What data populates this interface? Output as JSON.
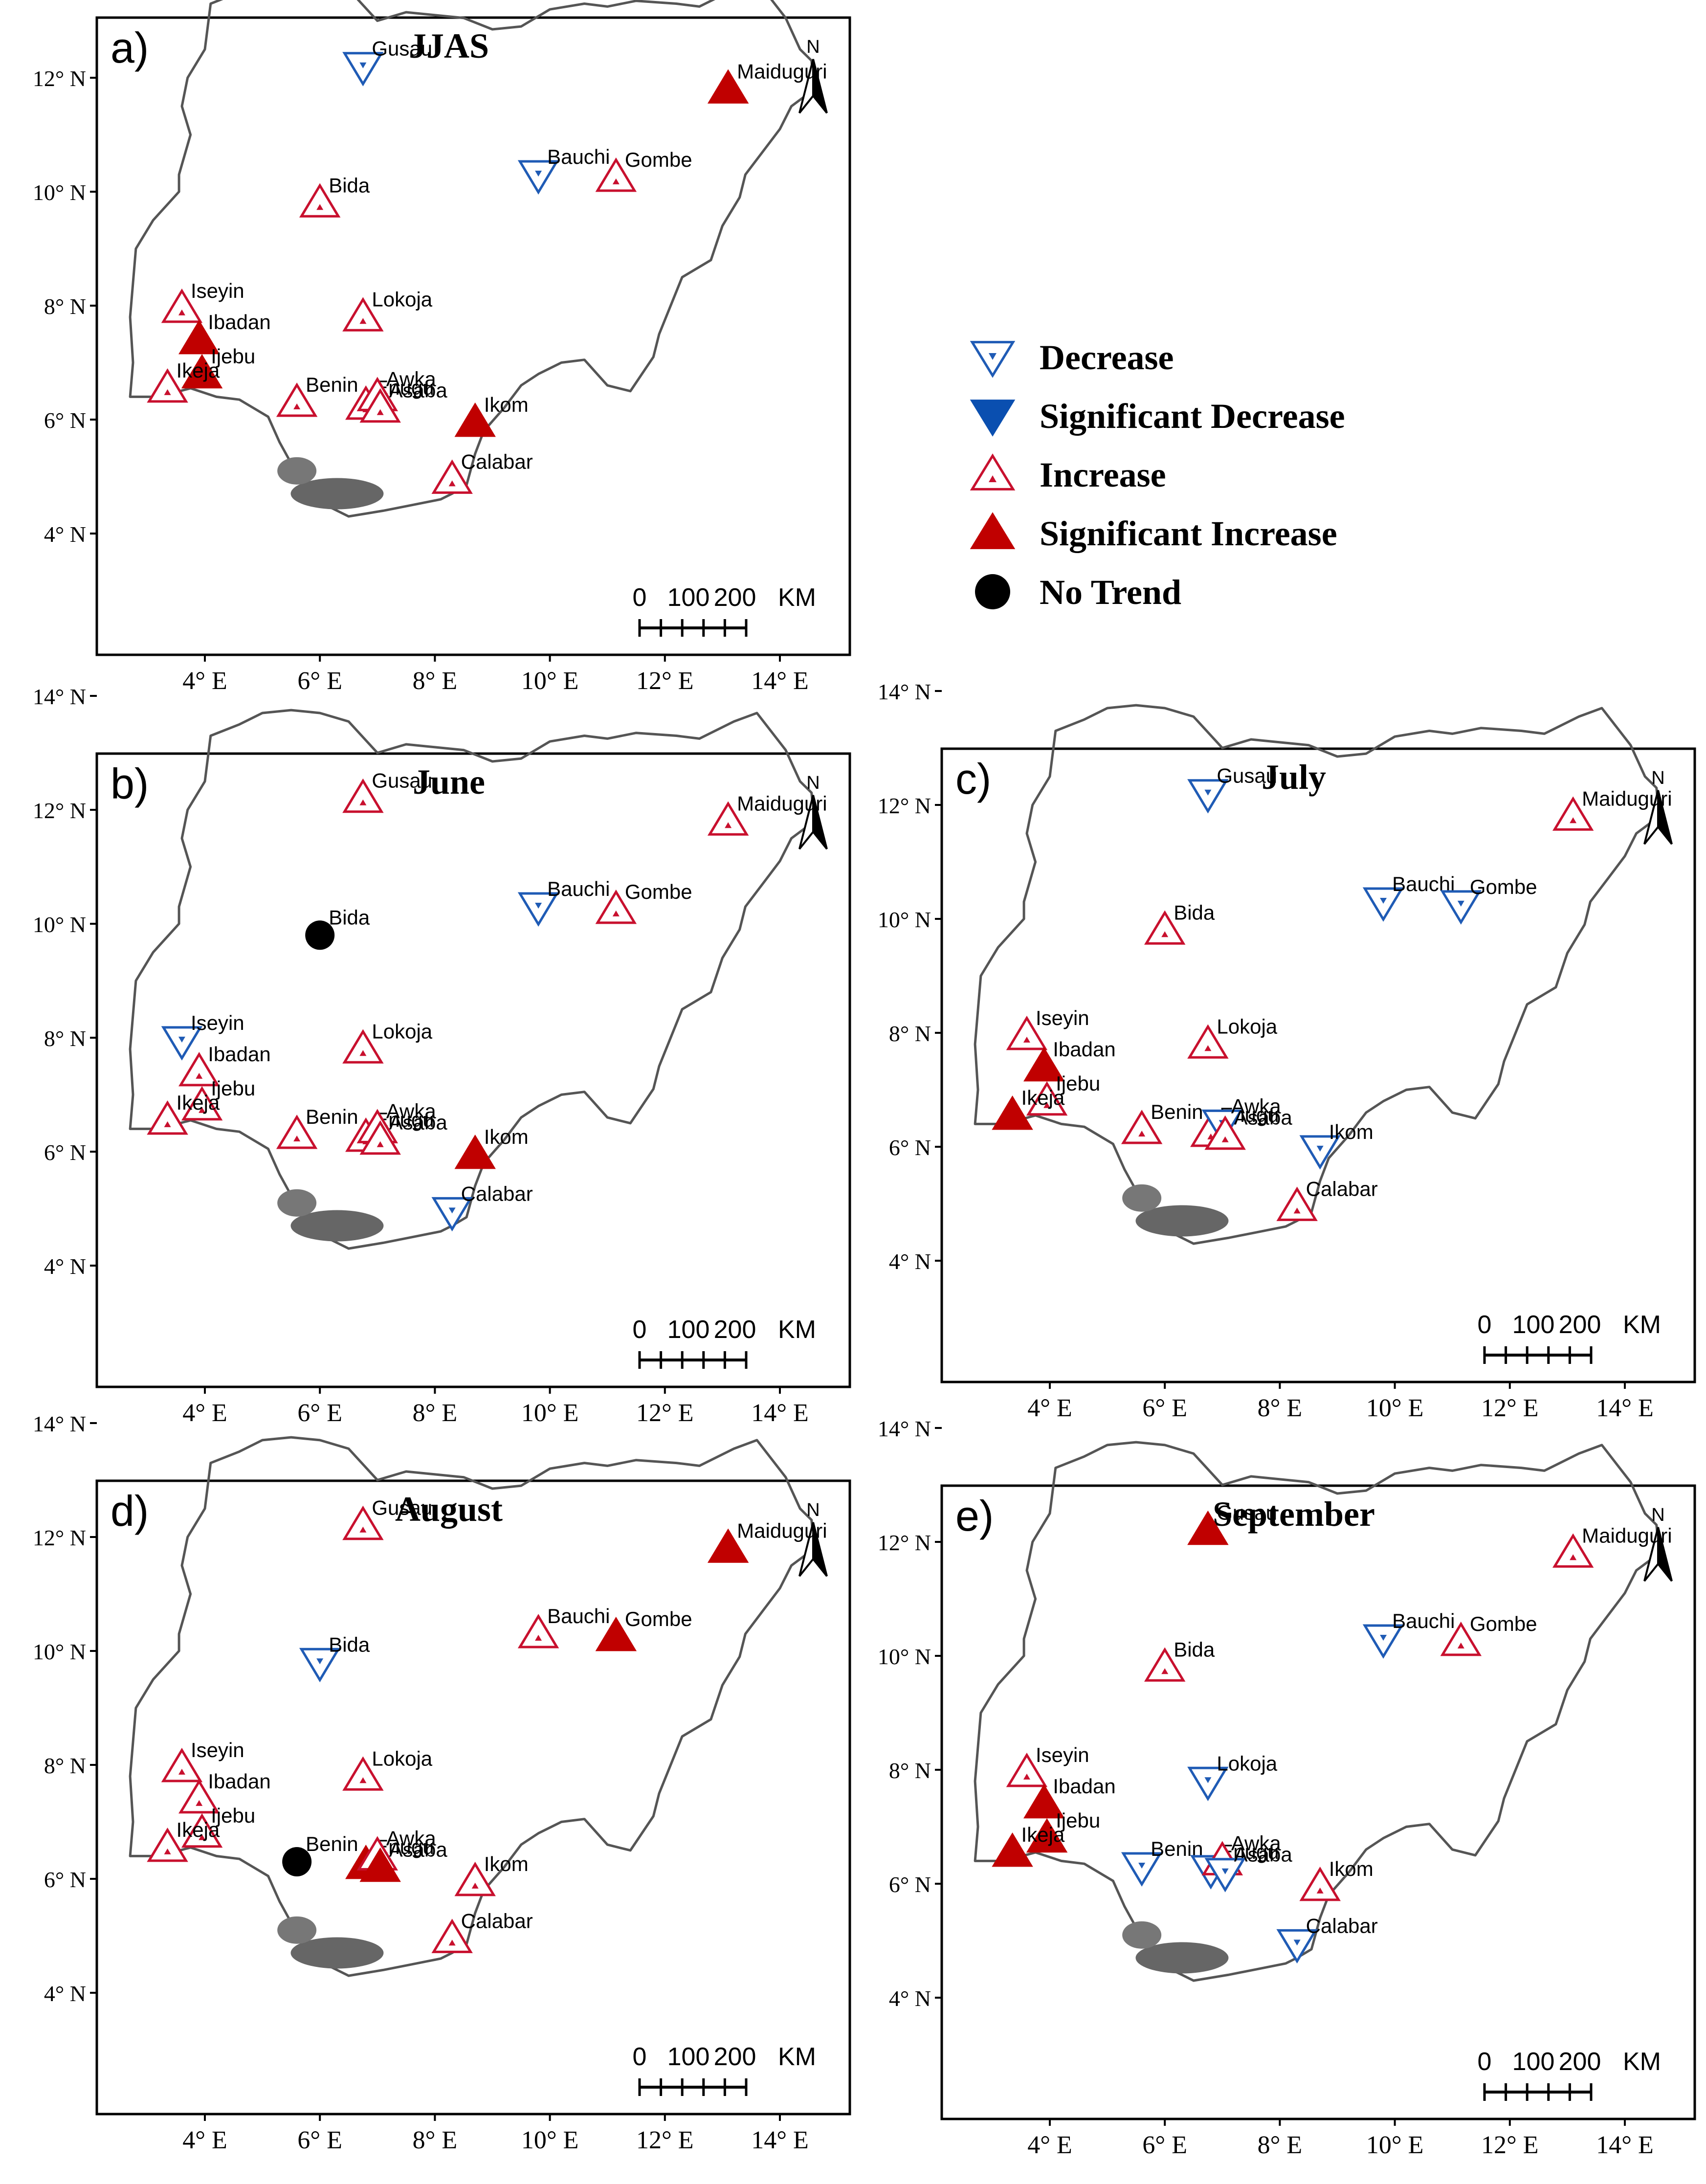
{
  "legend": [
    {
      "key": "dec",
      "label": "Decrease",
      "color": "#1f5bb5"
    },
    {
      "key": "sdec",
      "label": "Significant Decrease",
      "color": "#0a4fb0"
    },
    {
      "key": "inc",
      "label": "Increase",
      "color": "#c8102e"
    },
    {
      "key": "sinc",
      "label": "Significant Increase",
      "color": "#c00000"
    },
    {
      "key": "none",
      "label": "No Trend",
      "color": "#000000"
    }
  ],
  "axes": {
    "lat_ticks": [
      "14° N",
      "12° N",
      "10° N",
      "8° N",
      "6° N",
      "4° N"
    ],
    "lon_ticks": [
      "4° E",
      "6° E",
      "8° E",
      "10° E",
      "12° E",
      "14° E"
    ],
    "lat_values": [
      14,
      12,
      10,
      8,
      6,
      4
    ],
    "lon_values": [
      4,
      6,
      8,
      10,
      12,
      14
    ]
  },
  "scalebar": {
    "labels": [
      "0",
      "100",
      "200",
      "KM"
    ]
  },
  "north_label": "N",
  "stations": [
    {
      "name": "Gusau",
      "lon": 6.75,
      "lat": 12.2
    },
    {
      "name": "Maiduguri",
      "lon": 13.1,
      "lat": 11.8
    },
    {
      "name": "Bauchi",
      "lon": 9.8,
      "lat": 10.3
    },
    {
      "name": "Gombe",
      "lon": 11.15,
      "lat": 10.25
    },
    {
      "name": "Bida",
      "lon": 6.0,
      "lat": 9.8
    },
    {
      "name": "Iseyin",
      "lon": 3.6,
      "lat": 7.95
    },
    {
      "name": "Ibadan",
      "lon": 3.9,
      "lat": 7.4
    },
    {
      "name": "Ijebu",
      "lon": 3.95,
      "lat": 6.8
    },
    {
      "name": "Ikeja",
      "lon": 3.35,
      "lat": 6.55
    },
    {
      "name": "Lokoja",
      "lon": 6.75,
      "lat": 7.8
    },
    {
      "name": "Benin",
      "lon": 5.6,
      "lat": 6.3
    },
    {
      "name": "Enugu",
      "lon": 6.8,
      "lat": 6.25
    },
    {
      "name": "Awka",
      "lon": 7.0,
      "lat": 6.4
    },
    {
      "name": "Asaba",
      "lon": 7.05,
      "lat": 6.2
    },
    {
      "name": "Ikom",
      "lon": 8.7,
      "lat": 5.95
    },
    {
      "name": "Calabar",
      "lon": 8.3,
      "lat": 4.95
    }
  ],
  "panels": [
    {
      "id": "a",
      "letter": "a)",
      "title": "JJAS",
      "trends": {
        "Gusau": "dec",
        "Maiduguri": "sinc",
        "Bauchi": "dec",
        "Gombe": "inc",
        "Bida": "inc",
        "Iseyin": "inc",
        "Ibadan": "sinc",
        "Ijebu": "sinc",
        "Ikeja": "inc",
        "Lokoja": "inc",
        "Benin": "inc",
        "Enugu": "inc",
        "Awka": "inc",
        "Asaba": "inc",
        "Ikom": "sinc",
        "Calabar": "inc"
      }
    },
    {
      "id": "b",
      "letter": "b)",
      "title": "June",
      "trends": {
        "Gusau": "inc",
        "Maiduguri": "inc",
        "Bauchi": "dec",
        "Gombe": "inc",
        "Bida": "none",
        "Iseyin": "dec",
        "Ibadan": "inc",
        "Ijebu": "inc",
        "Ikeja": "inc",
        "Lokoja": "inc",
        "Benin": "inc",
        "Enugu": "inc",
        "Awka": "inc",
        "Asaba": "inc",
        "Ikom": "sinc",
        "Calabar": "dec"
      }
    },
    {
      "id": "c",
      "letter": "c)",
      "title": "July",
      "trends": {
        "Gusau": "dec",
        "Maiduguri": "inc",
        "Bauchi": "dec",
        "Gombe": "dec",
        "Bida": "inc",
        "Iseyin": "inc",
        "Ibadan": "sinc",
        "Ijebu": "inc",
        "Ikeja": "sinc",
        "Lokoja": "inc",
        "Benin": "inc",
        "Enugu": "inc",
        "Awka": "dec",
        "Asaba": "inc",
        "Ikom": "dec",
        "Calabar": "inc"
      }
    },
    {
      "id": "d",
      "letter": "d)",
      "title": "August",
      "trends": {
        "Gusau": "inc",
        "Maiduguri": "sinc",
        "Bauchi": "inc",
        "Gombe": "sinc",
        "Bida": "dec",
        "Iseyin": "inc",
        "Ibadan": "inc",
        "Ijebu": "inc",
        "Ikeja": "inc",
        "Lokoja": "inc",
        "Benin": "none",
        "Enugu": "sinc",
        "Awka": "inc",
        "Asaba": "sinc",
        "Ikom": "inc",
        "Calabar": "inc"
      }
    },
    {
      "id": "e",
      "letter": "e)",
      "title": "September",
      "trends": {
        "Gusau": "sinc",
        "Maiduguri": "inc",
        "Bauchi": "dec",
        "Gombe": "inc",
        "Bida": "inc",
        "Iseyin": "inc",
        "Ibadan": "sinc",
        "Ijebu": "sinc",
        "Ikeja": "sinc",
        "Lokoja": "dec",
        "Benin": "dec",
        "Enugu": "dec",
        "Awka": "inc",
        "Asaba": "dec",
        "Ikom": "inc",
        "Calabar": "dec"
      }
    }
  ]
}
